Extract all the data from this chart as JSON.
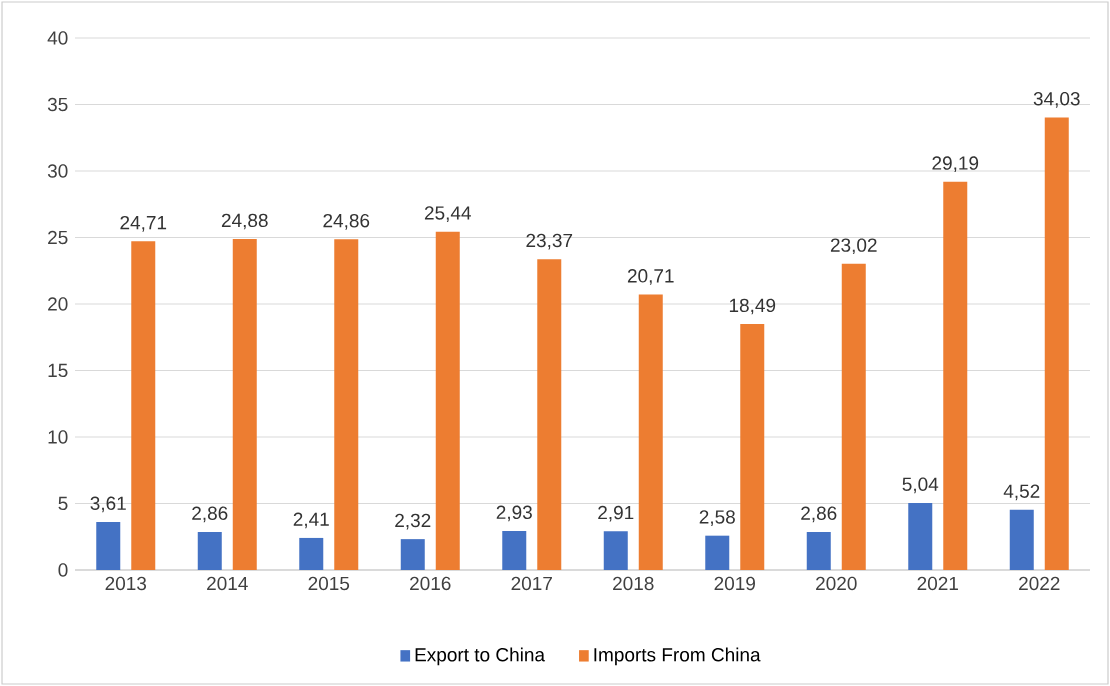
{
  "chart_data": {
    "type": "bar",
    "categories": [
      "2013",
      "2014",
      "2015",
      "2016",
      "2017",
      "2018",
      "2019",
      "2020",
      "2021",
      "2022"
    ],
    "series": [
      {
        "name": "Export to China",
        "color": "#4472c4",
        "values": [
          3.61,
          2.86,
          2.41,
          2.32,
          2.93,
          2.91,
          2.58,
          2.86,
          5.04,
          4.52
        ],
        "value_labels": [
          "3,61",
          "2,86",
          "2,41",
          "2,32",
          "2,93",
          "2,91",
          "2,58",
          "2,86",
          "5,04",
          "4,52"
        ]
      },
      {
        "name": "Imports From China",
        "color": "#ed7d31",
        "values": [
          24.71,
          24.88,
          24.86,
          25.44,
          23.37,
          20.71,
          18.49,
          23.02,
          29.19,
          34.03
        ],
        "value_labels": [
          "24,71",
          "24,88",
          "24,86",
          "25,44",
          "23,37",
          "20,71",
          "18,49",
          "23,02",
          "29,19",
          "34,03"
        ]
      }
    ],
    "ylim": [
      0,
      40
    ],
    "yticks": [
      0,
      5,
      10,
      15,
      20,
      25,
      30,
      35,
      40
    ],
    "grid": "y",
    "legend": "bottom"
  }
}
